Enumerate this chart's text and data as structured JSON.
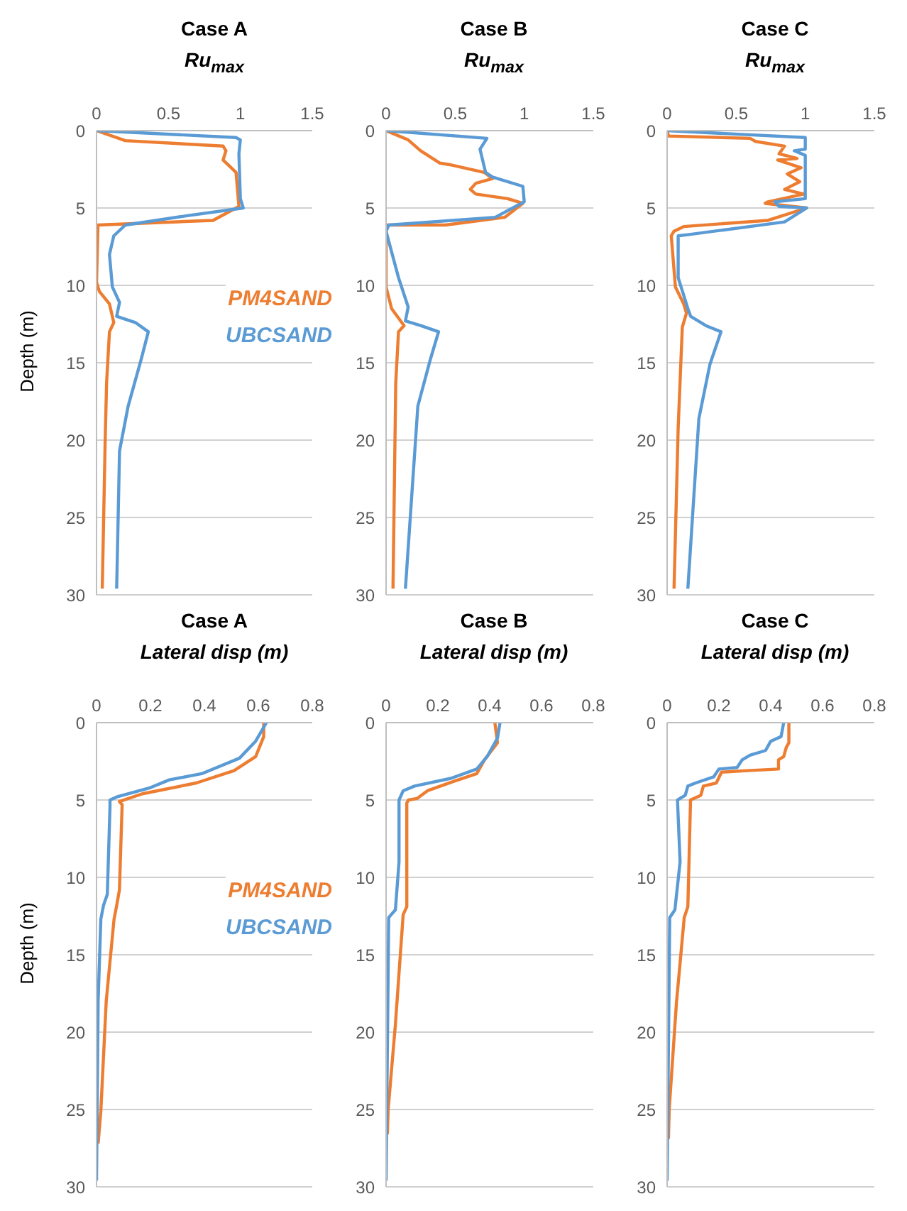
{
  "chart_data": [
    {
      "type": "line",
      "title": "Case A",
      "xlabel": "Ru$_{max}$",
      "ylabel": "Depth (m)",
      "xlim": [
        0,
        1.5
      ],
      "xticks": [
        0,
        0.5,
        1,
        1.5
      ],
      "ylim": [
        30,
        0
      ],
      "yticks": [
        0,
        5,
        10,
        15,
        20,
        25,
        30
      ],
      "grid": "y",
      "legend": "right",
      "marker": "none",
      "series": [
        {
          "name": "PM4SAND",
          "color": "#ed7d31",
          "x": [
            0,
            0.2,
            0.88,
            0.9,
            0.88,
            0.97,
            0.98,
            0.99,
            0.81,
            0.01,
            0,
            0.02,
            0.09,
            0.12,
            0.09,
            0.07,
            0.06,
            0.04
          ],
          "values": [
            0,
            0.65,
            1.0,
            1.3,
            1.9,
            2.7,
            3.8,
            4.9,
            5.8,
            6.1,
            9.8,
            10.4,
            11.2,
            12.4,
            13.0,
            16.3,
            20.1,
            29.6
          ]
        },
        {
          "name": "UBCSAND",
          "color": "#5b9bd5",
          "x": [
            0,
            0.97,
            1.0,
            0.99,
            1.0,
            1.02,
            0.63,
            0.2,
            0.12,
            0.09,
            0.11,
            0.16,
            0.14,
            0.27,
            0.36,
            0.31,
            0.22,
            0.16,
            0.14
          ],
          "values": [
            0,
            0.45,
            0.6,
            1.5,
            4.4,
            5.0,
            5.5,
            6.1,
            6.8,
            8.0,
            10.1,
            11.1,
            12.0,
            12.4,
            13.0,
            14.8,
            17.8,
            20.7,
            29.6
          ]
        }
      ]
    },
    {
      "type": "line",
      "title": "Case B",
      "xlabel": "Ru$_{max}$",
      "xlim": [
        0,
        1.5
      ],
      "xticks": [
        0,
        0.5,
        1,
        1.5
      ],
      "ylim": [
        30,
        0
      ],
      "yticks": [
        0,
        5,
        10,
        15,
        20,
        25,
        30
      ],
      "grid": "y",
      "marker": "none",
      "series": [
        {
          "color": "#ed7d31",
          "x": [
            0,
            0.16,
            0.25,
            0.39,
            0.46,
            0.71,
            0.77,
            0.65,
            0.61,
            0.65,
            0.88,
            0.99,
            0.86,
            0.43,
            0,
            0,
            0.04,
            0.13,
            0.09,
            0.07,
            0.05
          ],
          "values": [
            0,
            0.6,
            1.3,
            2.1,
            2.2,
            2.7,
            3.1,
            3.4,
            3.8,
            4.1,
            4.4,
            4.7,
            5.6,
            6.1,
            6.1,
            10.1,
            11.5,
            12.6,
            13.0,
            16.3,
            29.6
          ]
        },
        {
          "color": "#5b9bd5",
          "x": [
            0,
            0.73,
            0.68,
            0.72,
            0.77,
            0.99,
            1.0,
            0.79,
            0.02,
            0,
            0.09,
            0.16,
            0.14,
            0.25,
            0.38,
            0.32,
            0.23,
            0.14
          ],
          "values": [
            0,
            0.5,
            1.2,
            2.7,
            3.0,
            3.6,
            4.6,
            5.6,
            6.1,
            6.5,
            9.5,
            11.4,
            12.3,
            12.6,
            13.0,
            14.8,
            17.8,
            29.6
          ]
        }
      ]
    },
    {
      "type": "line",
      "title": "Case C",
      "xlabel": "Ru$_{max}$",
      "xlim": [
        0,
        1.5
      ],
      "xticks": [
        0,
        0.5,
        1,
        1.5
      ],
      "ylim": [
        30,
        0
      ],
      "yticks": [
        0,
        5,
        10,
        15,
        20,
        25,
        30
      ],
      "grid": "y",
      "marker": "none",
      "series": [
        {
          "color": "#ed7d31",
          "x": [
            0,
            0.01,
            0.6,
            0.64,
            0.85,
            0.81,
            0.94,
            0.8,
            0.97,
            0.87,
            0.96,
            0.85,
            0.99,
            0.73,
            0.71,
            1.01,
            0.73,
            0.12,
            0.05,
            0.03,
            0.06,
            0.12,
            0.14,
            0.11,
            0.08,
            0.05
          ],
          "values": [
            0,
            0.35,
            0.5,
            0.7,
            1.0,
            1.5,
            1.8,
            1.9,
            2.4,
            2.8,
            3.3,
            3.8,
            4.1,
            4.6,
            4.7,
            5.0,
            5.8,
            6.2,
            6.5,
            6.8,
            10.1,
            11.2,
            11.8,
            12.7,
            19.2,
            29.6
          ]
        },
        {
          "color": "#5b9bd5",
          "x": [
            0,
            1.0,
            1.0,
            0.92,
            1.0,
            1.0,
            0.78,
            0.81,
            1.01,
            0.85,
            0.17,
            0.08,
            0.08,
            0.15,
            0.17,
            0.28,
            0.39,
            0.31,
            0.23,
            0.15
          ],
          "values": [
            0,
            0.45,
            1.2,
            1.3,
            1.6,
            4.4,
            4.6,
            4.9,
            5.0,
            5.9,
            6.7,
            6.8,
            9.5,
            11.5,
            12.0,
            12.6,
            13.0,
            15.1,
            18.6,
            29.6
          ]
        }
      ]
    },
    {
      "type": "line",
      "title": "Case A",
      "xlabel": "Lateral disp (m)",
      "ylabel": "Depth (m)",
      "xlim": [
        0,
        0.8
      ],
      "xticks": [
        0,
        0.2,
        0.4,
        0.6,
        0.8
      ],
      "ylim": [
        30,
        0
      ],
      "yticks": [
        0,
        5,
        10,
        15,
        20,
        25,
        30
      ],
      "grid": "y",
      "legend": "right",
      "marker": "none",
      "series": [
        {
          "name": "PM4SAND",
          "color": "#ed7d31",
          "x": [
            0.62,
            0.62,
            0.59,
            0.51,
            0.37,
            0.17,
            0.085,
            0.095,
            0.085,
            0.075,
            0.065,
            0.036,
            0.016,
            0.006
          ],
          "values": [
            0,
            0.9,
            2.2,
            3.1,
            3.9,
            4.6,
            5.1,
            5.3,
            10.8,
            11.8,
            12.7,
            18.0,
            25.1,
            27.2
          ]
        },
        {
          "name": "UBCSAND",
          "color": "#5b9bd5",
          "x": [
            0.63,
            0.59,
            0.53,
            0.39,
            0.27,
            0.2,
            0.075,
            0.05,
            0.05,
            0.04,
            0.026,
            0.016,
            0.006,
            0
          ],
          "values": [
            0,
            1.2,
            2.3,
            3.3,
            3.7,
            4.2,
            4.8,
            5.0,
            5.4,
            11.1,
            11.8,
            12.7,
            18.0,
            29.6
          ]
        }
      ]
    },
    {
      "type": "line",
      "title": "Case B",
      "xlabel": "Lateral disp (m)",
      "xlim": [
        0,
        0.8
      ],
      "xticks": [
        0,
        0.2,
        0.4,
        0.6,
        0.8
      ],
      "ylim": [
        30,
        0
      ],
      "yticks": [
        0,
        5,
        10,
        15,
        20,
        25,
        30
      ],
      "grid": "y",
      "marker": "none",
      "series": [
        {
          "color": "#ed7d31",
          "x": [
            0.42,
            0.43,
            0.38,
            0.35,
            0.26,
            0.16,
            0.12,
            0.086,
            0.08,
            0.08,
            0.066,
            0.036,
            0.008,
            0.005
          ],
          "values": [
            0,
            1.3,
            2.4,
            3.3,
            3.8,
            4.4,
            4.9,
            5.0,
            5.2,
            11.9,
            12.4,
            19.5,
            25.0,
            26.6
          ]
        },
        {
          "color": "#5b9bd5",
          "x": [
            0.44,
            0.43,
            0.39,
            0.35,
            0.25,
            0.11,
            0.066,
            0.05,
            0.05,
            0.036,
            0.01,
            0.006,
            0
          ],
          "values": [
            0,
            1.0,
            2.2,
            3.0,
            3.6,
            4.1,
            4.4,
            5.0,
            9.0,
            12.1,
            12.6,
            19.5,
            29.6
          ]
        }
      ]
    },
    {
      "type": "line",
      "title": "Case C",
      "xlabel": "Lateral disp (m)",
      "xlim": [
        0,
        0.8
      ],
      "xticks": [
        0,
        0.2,
        0.4,
        0.6,
        0.8
      ],
      "ylim": [
        30,
        0
      ],
      "yticks": [
        0,
        5,
        10,
        15,
        20,
        25,
        30
      ],
      "grid": "y",
      "marker": "none",
      "series": [
        {
          "color": "#ed7d31",
          "x": [
            0.47,
            0.47,
            0.46,
            0.45,
            0.43,
            0.43,
            0.31,
            0.21,
            0.19,
            0.14,
            0.13,
            0.09,
            0.09,
            0.08,
            0.066,
            0.036,
            0.008,
            0.005
          ],
          "values": [
            0,
            1.3,
            1.6,
            2.2,
            2.4,
            3.0,
            3.1,
            3.2,
            3.9,
            4.1,
            4.7,
            5.0,
            5.3,
            11.9,
            12.6,
            18.1,
            25.0,
            26.9
          ]
        },
        {
          "color": "#5b9bd5",
          "x": [
            0.45,
            0.44,
            0.4,
            0.38,
            0.32,
            0.29,
            0.27,
            0.2,
            0.18,
            0.11,
            0.08,
            0.07,
            0.04,
            0.05,
            0.03,
            0.01,
            0.006,
            0
          ],
          "values": [
            0,
            0.9,
            1.2,
            1.8,
            2.1,
            2.4,
            2.9,
            3.0,
            3.5,
            3.9,
            4.1,
            4.7,
            5.0,
            9.0,
            12.1,
            12.6,
            19.5,
            29.6
          ]
        }
      ]
    }
  ]
}
